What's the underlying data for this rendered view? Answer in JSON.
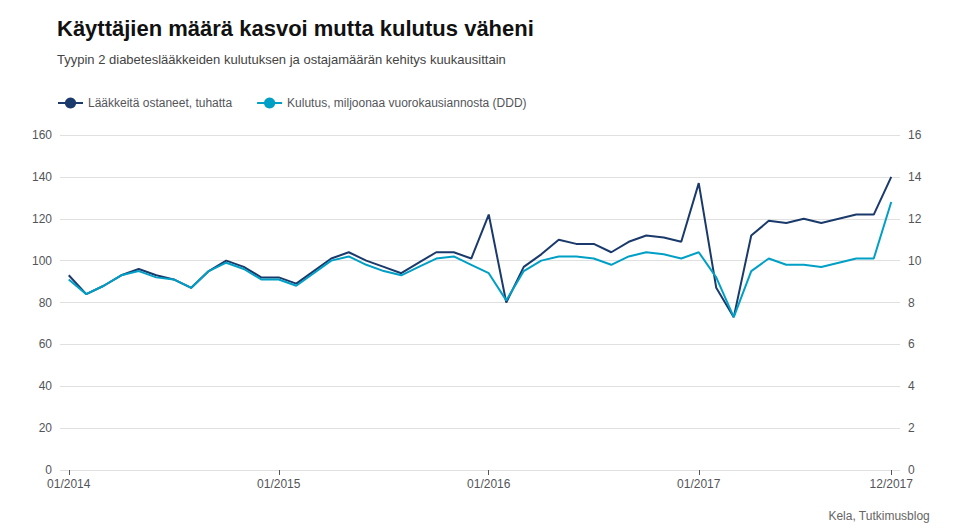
{
  "chart_data": {
    "type": "line",
    "title": "Käyttäjien määrä kasvoi mutta kulutus väheni",
    "subtitle": "Tyypin 2 diabeteslääkkeiden kulutuksen ja ostajamäärän kehitys kuukausittain",
    "annotations": [
      "Kela, Tutkimusblog"
    ],
    "categories": [
      "01/2014",
      null,
      null,
      null,
      null,
      null,
      null,
      null,
      null,
      null,
      null,
      null,
      "01/2015",
      null,
      null,
      null,
      null,
      null,
      null,
      null,
      null,
      null,
      null,
      null,
      "01/2016",
      null,
      null,
      null,
      null,
      null,
      null,
      null,
      null,
      null,
      null,
      null,
      "01/2017",
      null,
      null,
      null,
      null,
      null,
      null,
      null,
      null,
      null,
      null,
      "12/2017"
    ],
    "series": [
      {
        "name": "Lääkkeitä ostaneet, tuhatta",
        "color": "#1a3a6b",
        "values": [
          93,
          84,
          88,
          93,
          96,
          93,
          91,
          87,
          95,
          100,
          97,
          92,
          92,
          89,
          95,
          101,
          104,
          100,
          97,
          94,
          99,
          104,
          104,
          101,
          122,
          80,
          97,
          103,
          110,
          108,
          108,
          104,
          109,
          112,
          111,
          109,
          137,
          87,
          73,
          112,
          119,
          118,
          120,
          118,
          120,
          122,
          122,
          140
        ]
      },
      {
        "name": "Kulutus, miljoonaa vuorokausiannosta (DDD)",
        "color": "#00a0c6",
        "axis": "y2",
        "values": [
          9.1,
          8.4,
          8.8,
          9.3,
          9.5,
          9.2,
          9.1,
          8.7,
          9.5,
          9.9,
          9.6,
          9.1,
          9.1,
          8.8,
          9.4,
          10.0,
          10.2,
          9.8,
          9.5,
          9.3,
          9.7,
          10.1,
          10.2,
          9.8,
          9.4,
          8.1,
          9.5,
          10.0,
          10.2,
          10.2,
          10.1,
          9.8,
          10.2,
          10.4,
          10.3,
          10.1,
          10.4,
          9.2,
          7.3,
          9.5,
          10.1,
          9.8,
          9.8,
          9.7,
          9.9,
          10.1,
          10.1,
          12.8
        ]
      }
    ],
    "ylim": [
      0,
      160
    ],
    "yticks": [
      0,
      20,
      40,
      60,
      80,
      100,
      120,
      140,
      160
    ],
    "y2lim": [
      0,
      16
    ],
    "y2ticks": [
      0,
      2,
      4,
      6,
      8,
      10,
      12,
      14,
      16
    ],
    "grid": true,
    "legend": "top"
  }
}
